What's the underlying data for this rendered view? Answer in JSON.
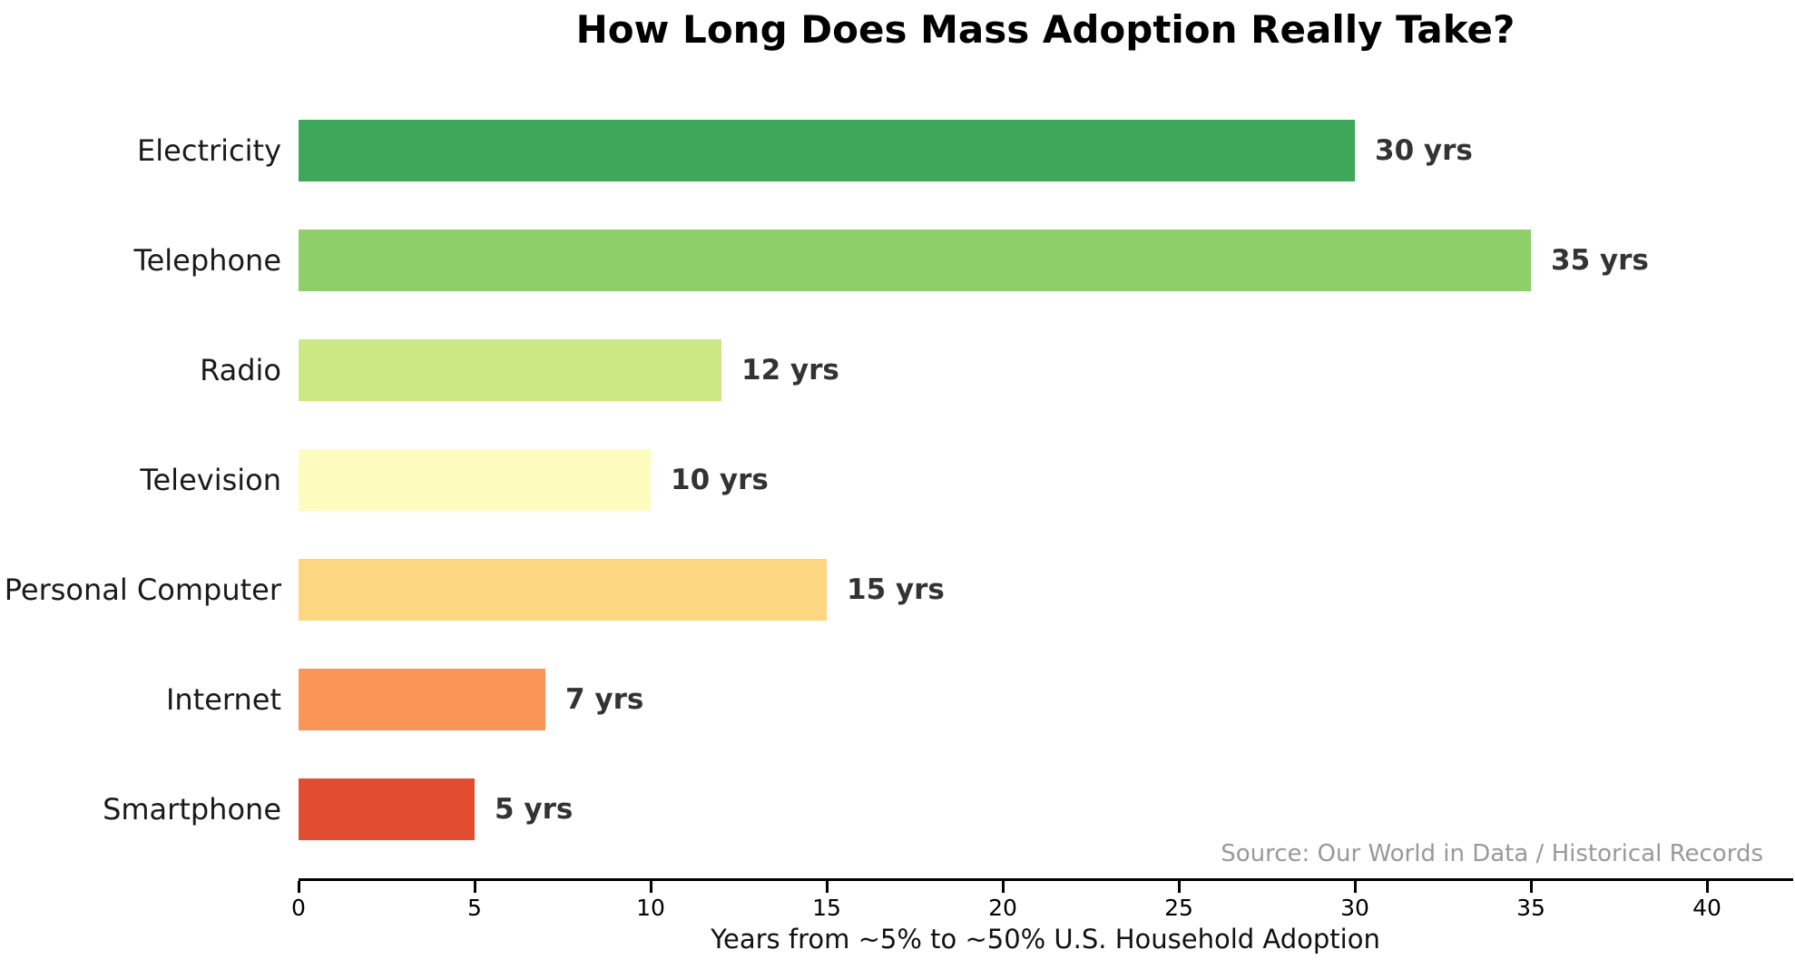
{
  "chart_data": {
    "type": "bar",
    "orientation": "horizontal",
    "title": "How Long Does Mass Adoption Really Take?",
    "xlabel": "Years from ~5% to ~50% U.S. Household Adoption",
    "source": "Source: Our World in Data / Historical Records",
    "categories": [
      "Electricity",
      "Telephone",
      "Radio",
      "Television",
      "Personal Computer",
      "Internet",
      "Smartphone"
    ],
    "values": [
      30,
      35,
      12,
      10,
      15,
      7,
      5
    ],
    "value_labels": [
      "30 yrs",
      "35 yrs",
      "12 yrs",
      "10 yrs",
      "15 yrs",
      "7 yrs",
      "5 yrs"
    ],
    "bar_colors": [
      "#3FA75A",
      "#8FCF6A",
      "#CBE884",
      "#FEFBBE",
      "#FCD680",
      "#F99657",
      "#E24D31"
    ],
    "xticks": [
      0,
      5,
      10,
      15,
      20,
      25,
      30,
      35,
      40
    ],
    "xlim": [
      0,
      41.7
    ],
    "grid": false,
    "legend": false,
    "colors": {
      "title": "#000000",
      "category_label": "#1a1a1a",
      "value_label": "#333333",
      "tick_label": "#000000",
      "axis": "#000000",
      "source": "#999999",
      "background": "#ffffff"
    }
  }
}
